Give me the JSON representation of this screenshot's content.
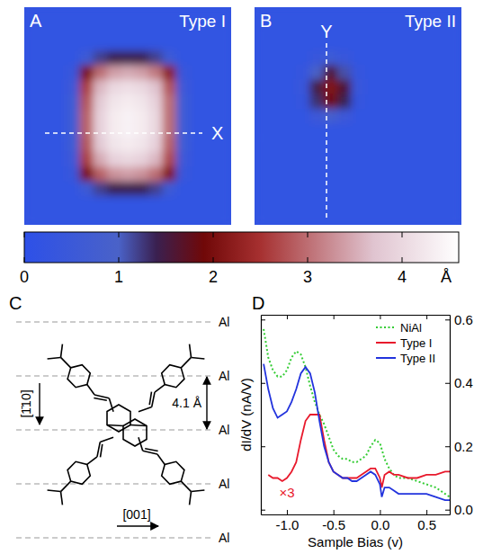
{
  "chart_data": [
    {
      "type": "heatmap",
      "panel": "A",
      "title": "Type I",
      "annotations": [
        {
          "text": "X"
        }
      ],
      "cells": [
        [
          0.2,
          0.2,
          0.2,
          0.2,
          0.2,
          0.2,
          0.2,
          0.2,
          0.2,
          0.2,
          0.2,
          0.2,
          0.2,
          0.2,
          0.2
        ],
        [
          0.2,
          0.2,
          0.2,
          0.2,
          0.2,
          0.2,
          0.2,
          0.2,
          0.2,
          0.2,
          0.2,
          0.2,
          0.2,
          0.2,
          0.2
        ],
        [
          0.2,
          0.2,
          0.2,
          0.2,
          0.2,
          0.2,
          0.2,
          0.2,
          0.2,
          0.2,
          0.2,
          0.2,
          0.2,
          0.2,
          0.2
        ],
        [
          0.2,
          0.2,
          0.2,
          0.2,
          0.6,
          1.2,
          1.4,
          1.4,
          1.4,
          1.2,
          0.6,
          0.2,
          0.2,
          0.2,
          0.2
        ],
        [
          0.2,
          0.2,
          0.2,
          0.4,
          2.0,
          3.0,
          3.4,
          3.5,
          3.4,
          3.1,
          2.2,
          0.4,
          0.2,
          0.2,
          0.2
        ],
        [
          0.2,
          0.2,
          0.2,
          0.5,
          2.6,
          3.6,
          4.0,
          4.1,
          4.0,
          3.7,
          2.8,
          0.5,
          0.2,
          0.2,
          0.2
        ],
        [
          0.2,
          0.2,
          0.2,
          0.6,
          2.8,
          3.8,
          4.2,
          4.3,
          4.2,
          3.9,
          3.0,
          0.6,
          0.2,
          0.2,
          0.2
        ],
        [
          0.2,
          0.2,
          0.2,
          0.6,
          2.9,
          3.9,
          4.3,
          4.4,
          4.3,
          4.0,
          3.0,
          0.6,
          0.2,
          0.2,
          0.2
        ],
        [
          0.2,
          0.2,
          0.2,
          0.6,
          2.9,
          3.9,
          4.3,
          4.4,
          4.3,
          4.0,
          3.0,
          0.6,
          0.2,
          0.2,
          0.2
        ],
        [
          0.2,
          0.2,
          0.2,
          0.6,
          2.8,
          3.8,
          4.2,
          4.3,
          4.2,
          3.9,
          2.9,
          0.6,
          0.2,
          0.2,
          0.2
        ],
        [
          0.2,
          0.2,
          0.2,
          0.5,
          2.6,
          3.5,
          3.9,
          4.0,
          3.9,
          3.6,
          2.7,
          0.5,
          0.2,
          0.2,
          0.2
        ],
        [
          0.2,
          0.2,
          0.2,
          0.4,
          2.0,
          2.9,
          3.3,
          3.4,
          3.3,
          3.0,
          2.1,
          0.4,
          0.2,
          0.2,
          0.2
        ],
        [
          0.2,
          0.2,
          0.2,
          0.2,
          0.6,
          1.2,
          1.4,
          1.4,
          1.4,
          1.2,
          0.6,
          0.2,
          0.2,
          0.2,
          0.2
        ],
        [
          0.2,
          0.2,
          0.2,
          0.2,
          0.2,
          0.2,
          0.2,
          0.2,
          0.2,
          0.2,
          0.2,
          0.2,
          0.2,
          0.2,
          0.2
        ],
        [
          0.2,
          0.2,
          0.2,
          0.2,
          0.2,
          0.2,
          0.2,
          0.2,
          0.2,
          0.2,
          0.2,
          0.2,
          0.2,
          0.2,
          0.2
        ]
      ],
      "colorbar": {
        "range": [
          0,
          4.6
        ],
        "ticks": [
          0,
          1,
          2,
          3,
          4
        ],
        "label": "Å"
      }
    },
    {
      "type": "heatmap",
      "panel": "B",
      "title": "Type II",
      "annotations": [
        {
          "text": "Y"
        }
      ],
      "cells": [
        [
          0.2,
          0.2,
          0.2,
          0.2,
          0.2,
          0.2,
          0.2,
          0.2,
          0.2,
          0.2,
          0.2,
          0.2,
          0.2,
          0.2,
          0.2
        ],
        [
          0.2,
          0.2,
          0.2,
          0.2,
          0.2,
          0.2,
          0.2,
          0.2,
          0.2,
          0.2,
          0.2,
          0.2,
          0.2,
          0.2,
          0.2
        ],
        [
          0.2,
          0.2,
          0.2,
          0.2,
          0.2,
          0.2,
          0.2,
          0.2,
          0.2,
          0.2,
          0.2,
          0.2,
          0.2,
          0.2,
          0.2
        ],
        [
          0.2,
          0.2,
          0.2,
          0.2,
          0.4,
          0.6,
          0.4,
          0.2,
          0.2,
          0.2,
          0.2,
          0.2,
          0.2,
          0.2,
          0.2
        ],
        [
          0.2,
          0.2,
          0.2,
          0.3,
          1.0,
          1.6,
          1.1,
          0.3,
          0.2,
          0.2,
          0.2,
          0.2,
          0.2,
          0.2,
          0.2
        ],
        [
          0.2,
          0.2,
          0.2,
          0.4,
          1.5,
          2.1,
          1.6,
          0.4,
          0.2,
          0.2,
          0.2,
          0.2,
          0.2,
          0.2,
          0.2
        ],
        [
          0.2,
          0.2,
          0.2,
          0.3,
          1.3,
          1.9,
          1.4,
          0.3,
          0.2,
          0.2,
          0.2,
          0.2,
          0.2,
          0.2,
          0.2
        ],
        [
          0.2,
          0.2,
          0.2,
          0.2,
          0.5,
          0.8,
          0.5,
          0.2,
          0.2,
          0.2,
          0.2,
          0.2,
          0.2,
          0.2,
          0.2
        ],
        [
          0.2,
          0.2,
          0.2,
          0.2,
          0.2,
          0.2,
          0.2,
          0.2,
          0.2,
          0.2,
          0.2,
          0.2,
          0.2,
          0.2,
          0.2
        ],
        [
          0.2,
          0.2,
          0.2,
          0.2,
          0.2,
          0.2,
          0.2,
          0.2,
          0.2,
          0.2,
          0.2,
          0.2,
          0.2,
          0.2,
          0.2
        ],
        [
          0.2,
          0.2,
          0.2,
          0.2,
          0.2,
          0.2,
          0.2,
          0.2,
          0.2,
          0.2,
          0.2,
          0.2,
          0.2,
          0.2,
          0.2
        ],
        [
          0.2,
          0.2,
          0.2,
          0.2,
          0.2,
          0.2,
          0.2,
          0.2,
          0.2,
          0.2,
          0.2,
          0.2,
          0.2,
          0.2,
          0.2
        ],
        [
          0.2,
          0.2,
          0.2,
          0.2,
          0.2,
          0.2,
          0.2,
          0.2,
          0.2,
          0.2,
          0.2,
          0.2,
          0.2,
          0.2,
          0.2
        ],
        [
          0.2,
          0.2,
          0.2,
          0.2,
          0.2,
          0.2,
          0.2,
          0.2,
          0.2,
          0.2,
          0.2,
          0.2,
          0.2,
          0.2,
          0.2
        ],
        [
          0.2,
          0.2,
          0.2,
          0.2,
          0.2,
          0.2,
          0.2,
          0.2,
          0.2,
          0.2,
          0.2,
          0.2,
          0.2,
          0.2,
          0.2
        ]
      ]
    },
    {
      "type": "line",
      "panel": "D",
      "x_label": "Sample Bias (v)",
      "y_label": "dI/dV (nA/V)",
      "x": [
        -1.25,
        -1.2,
        -1.15,
        -1.1,
        -1.05,
        -1.0,
        -0.95,
        -0.9,
        -0.85,
        -0.8,
        -0.75,
        -0.7,
        -0.65,
        -0.6,
        -0.55,
        -0.5,
        -0.45,
        -0.4,
        -0.35,
        -0.3,
        -0.25,
        -0.2,
        -0.15,
        -0.1,
        -0.05,
        0.0,
        0.02,
        0.05,
        0.1,
        0.15,
        0.2,
        0.3,
        0.4,
        0.5,
        0.6,
        0.7,
        0.75
      ],
      "xlim": [
        -1.28,
        0.75
      ],
      "xticks": [
        {
          "value": -1,
          "label": "-1.0"
        },
        -0.5,
        {
          "value": 0,
          "label": "0.0"
        },
        0.5
      ],
      "ylim": [
        -0.015,
        0.615
      ],
      "yticks": [
        {
          "value": 0,
          "label": "0.0"
        },
        0.2,
        0.4,
        0.6
      ],
      "legend": "upper right",
      "annotations": [
        {
          "text": "×3",
          "x": -1.0,
          "y": 0.04,
          "color": "#e8192c"
        }
      ],
      "series": [
        {
          "name": "NiAl",
          "color": "#33cc33",
          "line_style": "dotted",
          "values": [
            0.57,
            0.48,
            0.44,
            0.42,
            0.42,
            0.44,
            0.48,
            0.5,
            0.49,
            0.45,
            0.39,
            0.34,
            0.3,
            0.27,
            0.23,
            0.19,
            0.17,
            0.16,
            0.16,
            0.15,
            0.15,
            0.16,
            0.17,
            0.2,
            0.22,
            0.21,
            0.19,
            0.16,
            0.13,
            0.11,
            0.1,
            0.1,
            0.09,
            0.08,
            0.07,
            0.05,
            0.04
          ]
        },
        {
          "name": "Type I",
          "color": "#e8192c",
          "line_style": "solid",
          "values": [
            null,
            0.11,
            0.1,
            0.1,
            0.09,
            0.1,
            0.12,
            0.15,
            0.22,
            0.28,
            0.3,
            0.3,
            0.3,
            0.22,
            0.15,
            0.12,
            0.11,
            0.1,
            0.1,
            0.1,
            0.1,
            0.11,
            0.12,
            0.13,
            0.13,
            0.1,
            0.07,
            0.11,
            0.12,
            0.11,
            0.11,
            0.1,
            0.1,
            0.11,
            0.11,
            0.12,
            0.12
          ]
        },
        {
          "name": "Type II",
          "color": "#2233dd",
          "line_style": "solid",
          "values": [
            0.46,
            0.38,
            0.32,
            0.29,
            0.3,
            0.31,
            0.34,
            0.38,
            0.43,
            0.45,
            0.43,
            0.37,
            0.28,
            0.2,
            0.15,
            0.12,
            0.11,
            0.1,
            0.1,
            0.09,
            0.09,
            0.1,
            0.11,
            0.12,
            0.11,
            0.08,
            0.04,
            0.07,
            0.07,
            0.06,
            0.05,
            0.05,
            0.05,
            0.05,
            0.04,
            0.03,
            0.03
          ]
        }
      ]
    }
  ],
  "diagram": {
    "panel": "C",
    "rows": [
      "Al",
      "Al",
      "Al",
      "Al",
      "Al"
    ],
    "spacing_label": "4.1 Å",
    "directions": [
      "[1̄10]",
      "[001]"
    ]
  }
}
